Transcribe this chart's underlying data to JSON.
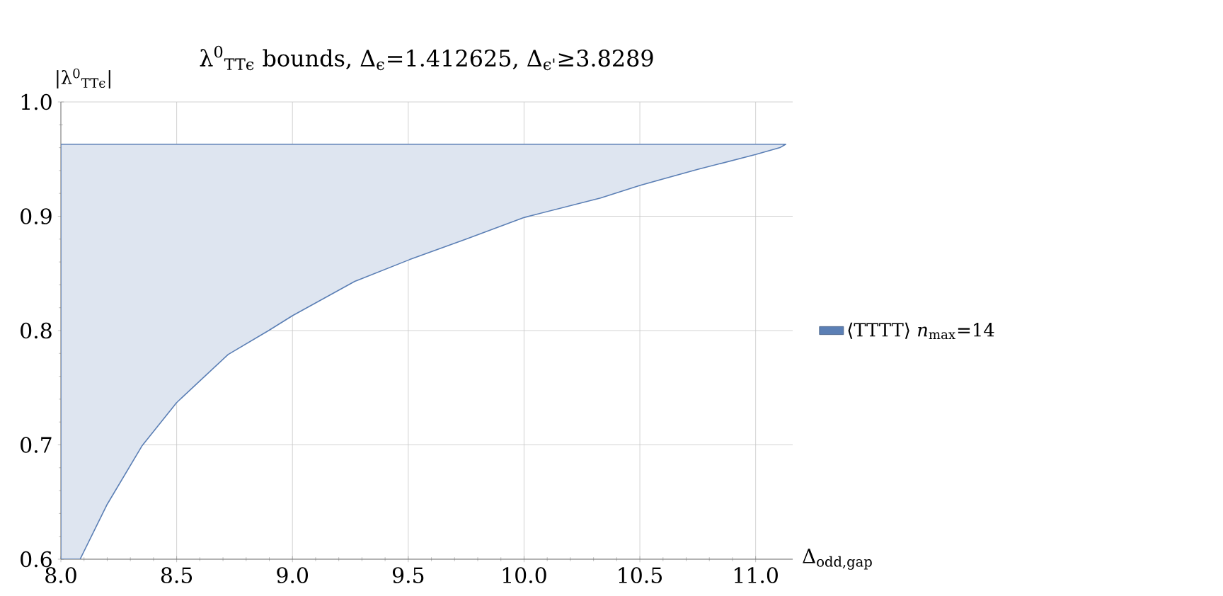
{
  "chart_data": {
    "type": "area",
    "title": "λ$^{0}$$_{TTϵ}$ bounds, Δ$_{ϵ}$=1.412625, Δ$_{ϵ'}$≥3.8289",
    "xlabel": "Δ$_{odd,gap}$",
    "ylabel": "|λ$^{0}$$_{TTϵ}$|",
    "series": [
      {
        "name": "⟨TTTT⟩ *n*$_{max}$=14",
        "color": "#5b7fb5",
        "x": [
          8.0,
          8.083,
          8.2,
          8.35,
          8.5,
          8.6,
          8.722,
          8.897,
          9.0,
          9.269,
          9.505,
          9.75,
          10.002,
          10.33,
          10.5,
          10.75,
          11.0,
          11.105,
          11.13,
          8.0
        ],
        "values": [
          0.6,
          0.6,
          0.648,
          0.699,
          0.737,
          0.756,
          0.779,
          0.8,
          0.813,
          0.843,
          0.862,
          0.88,
          0.899,
          0.916,
          0.927,
          0.941,
          0.954,
          0.96,
          0.963,
          0.963
        ]
      }
    ],
    "xlim": [
      8.0,
      11.16
    ],
    "ylim": [
      0.6,
      1.0
    ],
    "xticks": [
      {
        "value": 8.0,
        "label": "8.0"
      },
      {
        "value": 8.5,
        "label": "8.5"
      },
      {
        "value": 9.0,
        "label": "9.0"
      },
      {
        "value": 9.5,
        "label": "9.5"
      },
      {
        "value": 10.0,
        "label": "10.0"
      },
      {
        "value": 10.5,
        "label": "10.5"
      },
      {
        "value": 11.0,
        "label": "11.0"
      }
    ],
    "yticks": [
      0.6,
      0.7,
      0.8,
      0.9,
      {
        "value": 1.0,
        "label": "1.0"
      }
    ],
    "grid": true,
    "legend": "right"
  }
}
